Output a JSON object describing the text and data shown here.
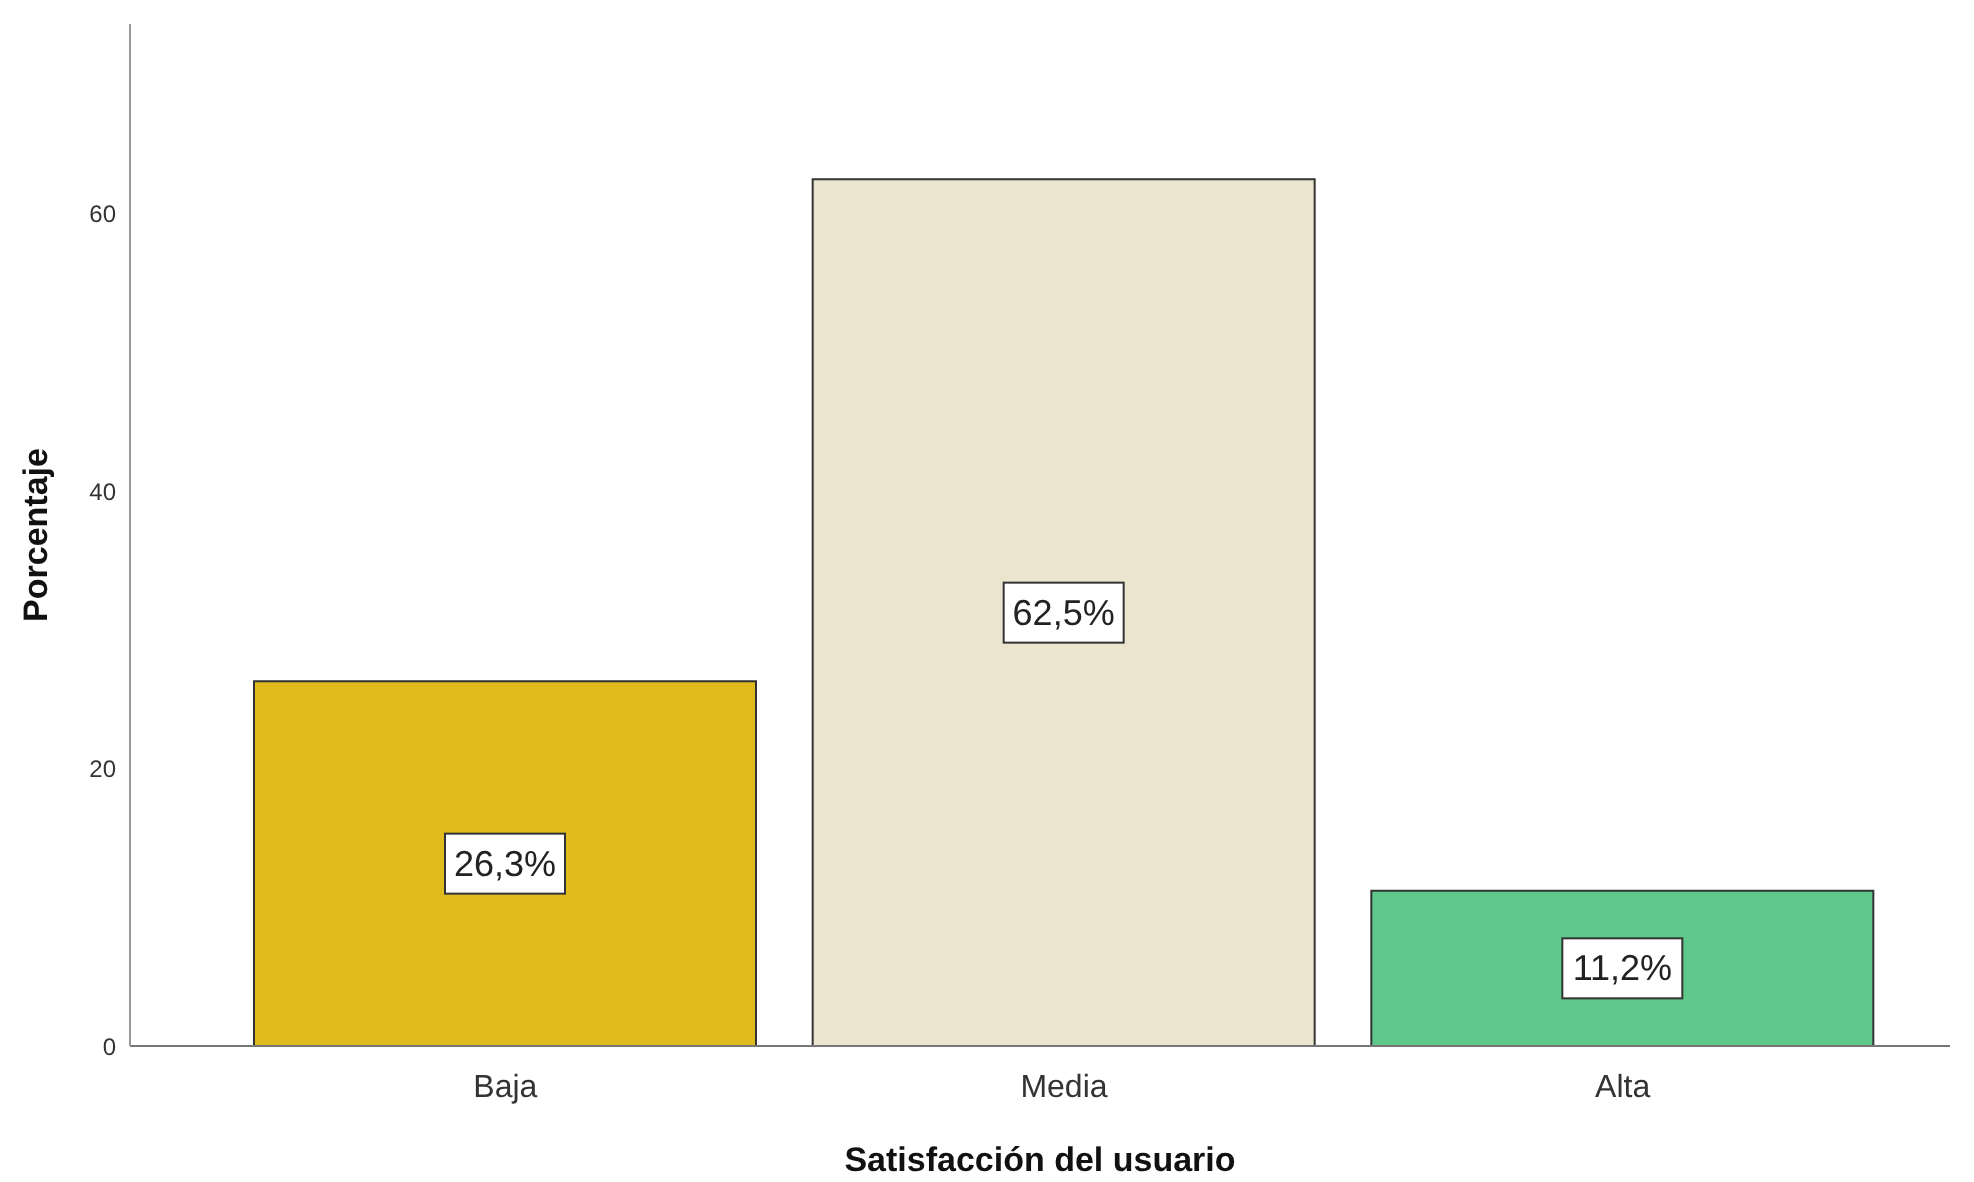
{
  "chart_data": {
    "type": "bar",
    "xlabel": "Satisfacción del usuario",
    "ylabel": "Porcentaje",
    "categories": [
      "Baja",
      "Media",
      "Alta"
    ],
    "values": [
      26.3,
      62.5,
      11.2
    ],
    "colors": [
      "#e0bb1e",
      "#ebe5d0",
      "#5ec98a"
    ],
    "value_labels": [
      "26,3%",
      "62,5%",
      "11,2%"
    ],
    "ylim": [
      0,
      73.7
    ],
    "yticks": [
      0,
      20,
      40,
      60
    ]
  }
}
